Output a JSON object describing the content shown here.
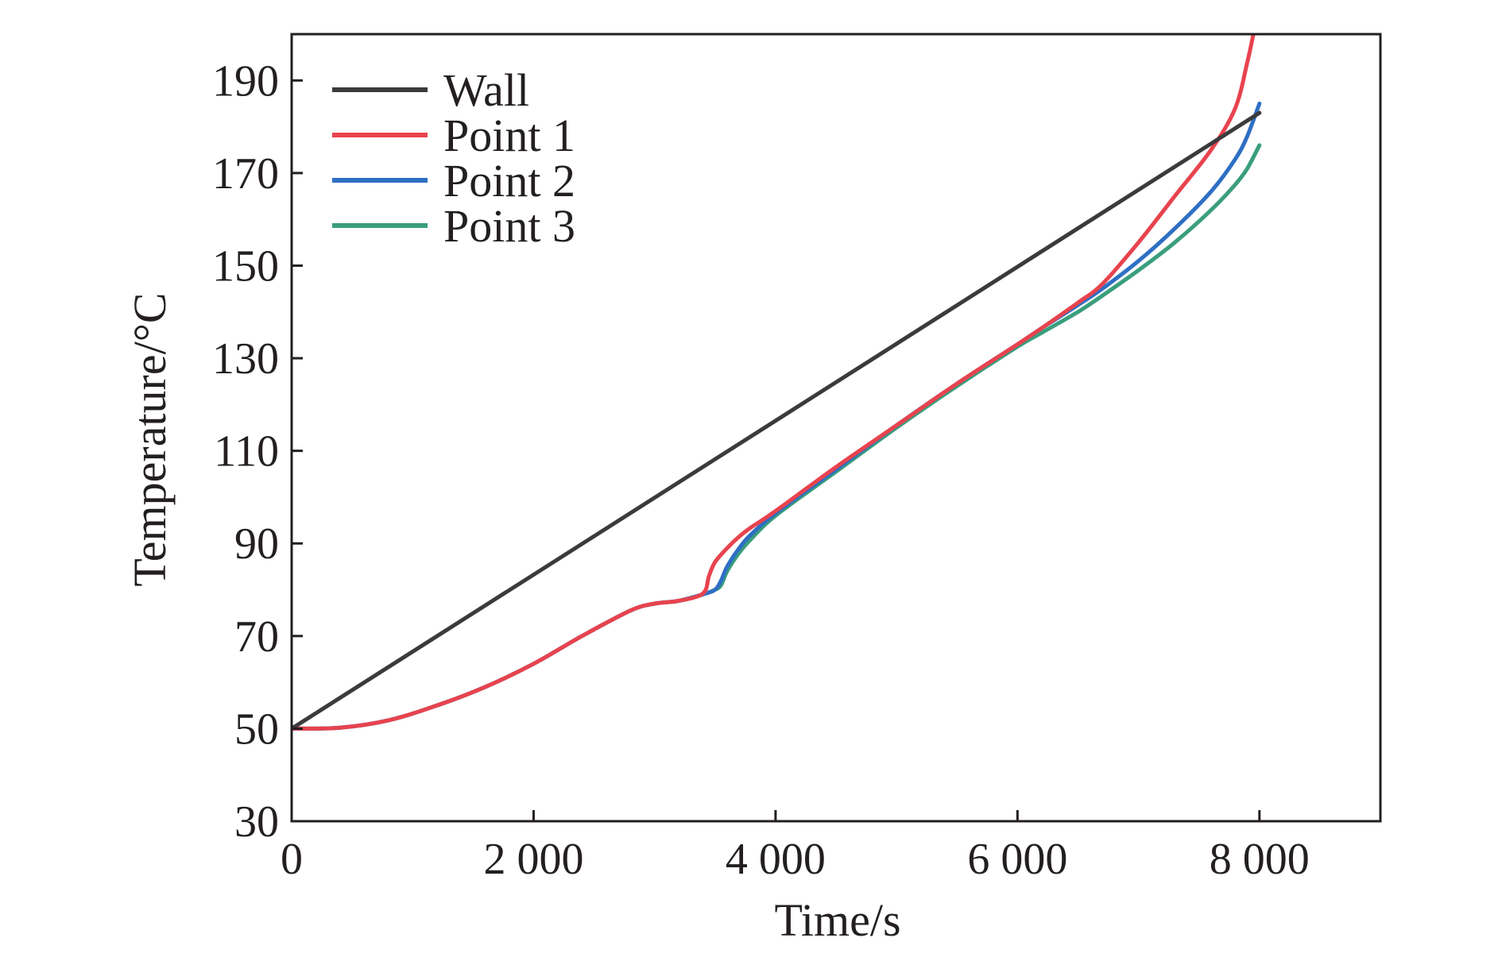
{
  "chart_data": {
    "type": "line",
    "xlabel": "Time/s",
    "ylabel": "Temperature/°C",
    "xlim": [
      0,
      9000
    ],
    "ylim": [
      30,
      200
    ],
    "xticks": [
      0,
      2000,
      4000,
      6000,
      8000
    ],
    "xtick_labels": [
      "0",
      "2 000",
      "4 000",
      "6 000",
      "8 000"
    ],
    "yticks": [
      30,
      50,
      70,
      90,
      110,
      130,
      150,
      170,
      190
    ],
    "ytick_labels": [
      "30",
      "50",
      "70",
      "90",
      "110",
      "130",
      "150",
      "170",
      "190"
    ],
    "grid": false,
    "legend_position": "top-left",
    "series": [
      {
        "name": "Wall",
        "color": "#3b3b3b",
        "x": [
          0,
          8000
        ],
        "y": [
          50,
          183
        ]
      },
      {
        "name": "Point 1",
        "color": "#e8434e",
        "x": [
          0,
          400,
          800,
          1200,
          1600,
          2000,
          2400,
          2800,
          3000,
          3200,
          3400,
          3450,
          3500,
          3600,
          3700,
          3800,
          4000,
          4500,
          5000,
          5500,
          6000,
          6200,
          6500,
          6700,
          7000,
          7300,
          7600,
          7800,
          7900,
          7950
        ],
        "y": [
          50,
          50.2,
          51.8,
          55,
          59,
          64,
          70,
          75.5,
          77,
          77.6,
          79.2,
          83,
          86,
          89,
          91.5,
          93.5,
          97,
          106.5,
          115.5,
          124.5,
          133,
          136.5,
          142,
          146,
          155,
          165,
          175,
          184,
          194,
          200
        ]
      },
      {
        "name": "Point 2",
        "color": "#2e6fc4",
        "x": [
          0,
          400,
          800,
          1200,
          1600,
          2000,
          2400,
          2800,
          3000,
          3200,
          3400,
          3500,
          3550,
          3600,
          3700,
          3800,
          4000,
          4500,
          5000,
          5500,
          6000,
          6200,
          6500,
          6700,
          7000,
          7300,
          7600,
          7800,
          7900,
          8000
        ],
        "y": [
          50,
          50.2,
          51.8,
          55,
          59,
          64,
          70,
          75.5,
          77,
          77.6,
          79,
          80,
          82,
          85,
          89,
          92,
          96.5,
          106,
          115.5,
          124.5,
          133,
          136.5,
          141.5,
          145,
          151,
          158,
          166,
          173,
          178,
          185
        ]
      },
      {
        "name": "Point 3",
        "color": "#3a9e7c",
        "x": [
          0,
          400,
          800,
          1200,
          1600,
          2000,
          2400,
          2800,
          3000,
          3200,
          3400,
          3500,
          3550,
          3600,
          3700,
          3800,
          4000,
          4500,
          5000,
          5500,
          6000,
          6200,
          6500,
          6700,
          7000,
          7300,
          7600,
          7800,
          7900,
          8000
        ],
        "y": [
          50,
          50.2,
          51.8,
          55,
          59,
          64,
          70,
          75.5,
          77,
          77.6,
          79,
          80,
          81,
          84,
          88,
          91,
          96,
          105.5,
          115,
          124,
          132.5,
          135.5,
          140,
          143.5,
          149,
          155,
          162,
          167.5,
          171,
          176
        ]
      }
    ]
  }
}
